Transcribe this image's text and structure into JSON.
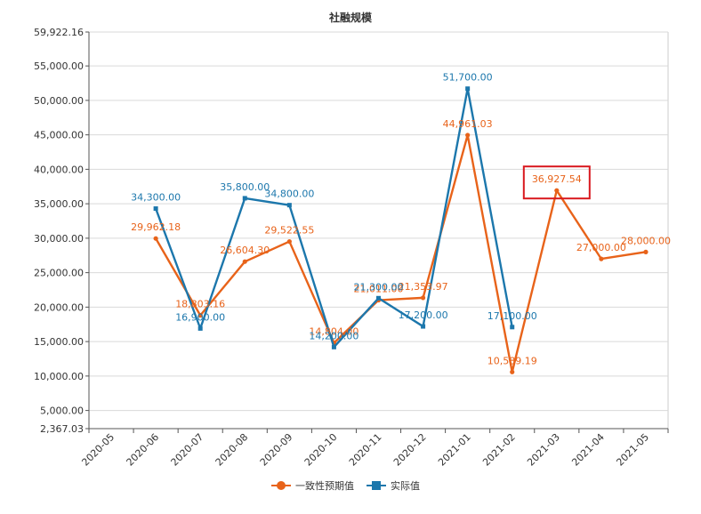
{
  "chart_data": {
    "type": "line",
    "title": "社融规模",
    "xlabel": "",
    "ylabel": "",
    "categories": [
      "2020-05",
      "2020-06",
      "2020-07",
      "2020-08",
      "2020-09",
      "2020-10",
      "2020-11",
      "2020-12",
      "2021-01",
      "2021-02",
      "2021-03",
      "2021-04",
      "2021-05"
    ],
    "ylim": [
      2367.03,
      59922.16
    ],
    "yticks": [
      2367.03,
      5000,
      10000,
      15000,
      20000,
      25000,
      30000,
      35000,
      40000,
      45000,
      50000,
      55000,
      59922.16
    ],
    "ytick_labels": [
      "2,367.03",
      "5,000.00",
      "10,000.00",
      "15,000.00",
      "20,000.00",
      "25,000.00",
      "30,000.00",
      "35,000.00",
      "40,000.00",
      "45,000.00",
      "50,000.00",
      "55,000.00",
      "59,922.16"
    ],
    "grid": true,
    "legend_position": "bottom",
    "series": [
      {
        "name": "一致性预期值",
        "color": "#e8631a",
        "marker": "circle",
        "values": [
          null,
          29962.18,
          18803.16,
          26604.3,
          29522.55,
          14804.0,
          21011.0,
          21353.97,
          44961.03,
          10589.19,
          36927.54,
          27000.0,
          28000.0
        ],
        "labels": [
          "",
          "29,962.18",
          "18,803.16",
          "26,604.30",
          "29,522.55",
          "14,804.00",
          "21,011.00",
          "21,353.97",
          "44,961.03",
          "10,589.19",
          "36,927.54",
          "27,000.00",
          "28,000.00"
        ]
      },
      {
        "name": "实际值",
        "color": "#1c77ac",
        "marker": "square",
        "values": [
          null,
          34300.0,
          16900.0,
          35800.0,
          34800.0,
          14200.0,
          21300.0,
          17200.0,
          51700.0,
          17100.0,
          null,
          null,
          null
        ],
        "labels": [
          "",
          "34,300.00",
          "16,900.00",
          "35,800.00",
          "34,800.00",
          "14,200.00",
          "21,300.00",
          "17,200.00",
          "51,700.00",
          "17,100.00",
          "",
          "",
          ""
        ]
      }
    ],
    "highlight": {
      "series": 0,
      "category": "2021-03",
      "color": "#d9191f"
    }
  }
}
